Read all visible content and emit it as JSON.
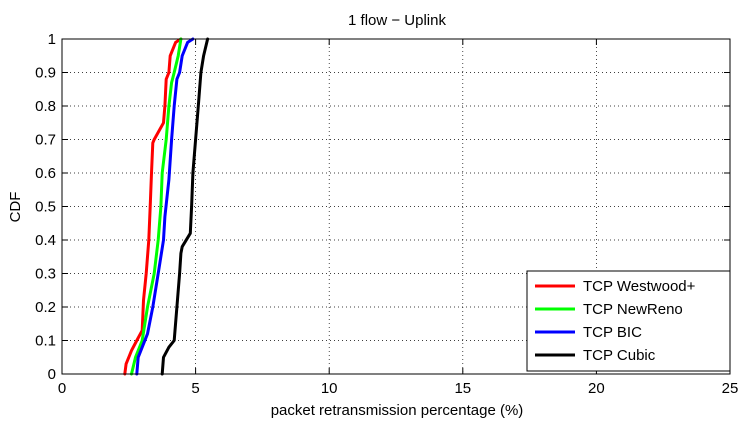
{
  "chart_data": {
    "type": "line",
    "title": "1 flow − Uplink",
    "xlabel": "packet retransmission percentage (%)",
    "ylabel": "CDF",
    "xlim": [
      0,
      25
    ],
    "ylim": [
      0,
      1
    ],
    "xticks": [
      0,
      5,
      10,
      15,
      20,
      25
    ],
    "yticks": [
      0,
      0.1,
      0.2,
      0.3,
      0.4,
      0.5,
      0.6,
      0.7,
      0.8,
      0.9,
      1
    ],
    "xtick_labels": [
      "0",
      "5",
      "10",
      "15",
      "20",
      "25"
    ],
    "ytick_labels": [
      "0",
      "0.1",
      "0.2",
      "0.3",
      "0.4",
      "0.5",
      "0.6",
      "0.7",
      "0.8",
      "0.9",
      "1"
    ],
    "grid": true,
    "legend_position": "bottom-right",
    "series": [
      {
        "name": "TCP Westwood+",
        "color": "#ff0000",
        "x": [
          2.35,
          2.4,
          2.6,
          2.8,
          3.0,
          3.05,
          3.15,
          3.25,
          3.3,
          3.35,
          3.4,
          3.45,
          3.8,
          3.85,
          3.9,
          4.0,
          4.05,
          4.25,
          4.45
        ],
        "y": [
          0,
          0.03,
          0.07,
          0.1,
          0.13,
          0.22,
          0.3,
          0.4,
          0.5,
          0.6,
          0.69,
          0.7,
          0.75,
          0.8,
          0.88,
          0.9,
          0.95,
          0.99,
          1
        ]
      },
      {
        "name": "TCP NewReno",
        "color": "#00ff00",
        "x": [
          2.6,
          2.75,
          3.0,
          3.2,
          3.45,
          3.6,
          3.7,
          3.75,
          3.9,
          4.0,
          4.1,
          4.2,
          4.35,
          4.45
        ],
        "y": [
          0,
          0.05,
          0.1,
          0.2,
          0.3,
          0.4,
          0.5,
          0.6,
          0.7,
          0.8,
          0.87,
          0.9,
          0.95,
          1
        ]
      },
      {
        "name": "TCP BIC",
        "color": "#0000ff",
        "x": [
          2.8,
          2.85,
          3.2,
          3.4,
          3.6,
          3.8,
          3.85,
          4.0,
          4.1,
          4.2,
          4.3,
          4.4,
          4.5,
          4.7,
          4.9
        ],
        "y": [
          0,
          0.05,
          0.12,
          0.2,
          0.3,
          0.4,
          0.47,
          0.58,
          0.7,
          0.8,
          0.88,
          0.9,
          0.95,
          0.99,
          1
        ]
      },
      {
        "name": "TCP Cubic",
        "color": "#000000",
        "x": [
          3.75,
          3.8,
          4.0,
          4.2,
          4.3,
          4.4,
          4.45,
          4.5,
          4.8,
          4.85,
          4.9,
          5.0,
          5.1,
          5.2,
          5.3,
          5.45
        ],
        "y": [
          0,
          0.05,
          0.08,
          0.1,
          0.2,
          0.3,
          0.36,
          0.38,
          0.42,
          0.5,
          0.6,
          0.7,
          0.8,
          0.9,
          0.95,
          1
        ]
      }
    ]
  }
}
